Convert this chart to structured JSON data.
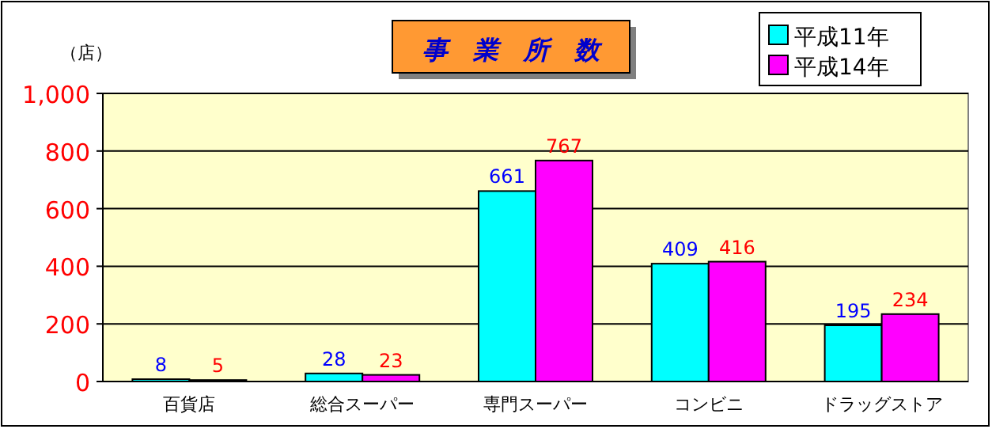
{
  "chart_data": {
    "type": "bar",
    "title": "事　業　所　数",
    "ylabel": "（店）",
    "categories": [
      "百貨店",
      "総合スーパー",
      "専門スーパー",
      "コンビニ",
      "ドラッグストア"
    ],
    "series": [
      {
        "name": "平成11年",
        "color": "#00ffff",
        "values": [
          8,
          28,
          661,
          409,
          195
        ]
      },
      {
        "name": "平成14年",
        "color": "#ff00ff",
        "values": [
          5,
          23,
          767,
          416,
          234
        ]
      }
    ],
    "ylim": [
      0,
      1000
    ],
    "yticks": [
      0,
      200,
      400,
      600,
      800,
      {
        "value": 1000,
        "label": "1,000"
      }
    ],
    "grid": "y",
    "legend": "top right",
    "data_labels": true
  }
}
